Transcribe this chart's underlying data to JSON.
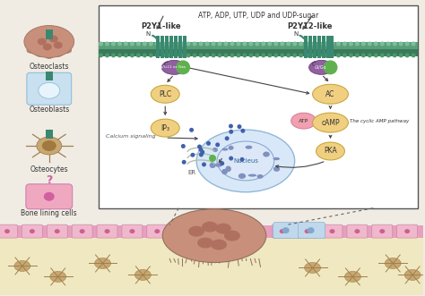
{
  "bg_color": "#f0ece4",
  "box_bg": "#ffffff",
  "title_text": "ATP, ADP, UTP, UDP and UDP-sugar",
  "receptor1_label": "P2Y1-like",
  "receptor2_label": "P2Y12-like",
  "g_protein1_label": "Gq/G11 or Gas",
  "g_protein2_label": "Gi/Go",
  "node_plc": "PLC",
  "node_ip3": "IP₃",
  "node_ac": "AC",
  "node_atp": "ATP",
  "node_camp": "cAMP",
  "node_pka": "PKA",
  "node_er": "ER",
  "node_nucleus": "Nucleus",
  "label_calcium": "Calcium signaling",
  "label_cyclic": "The cyclic AMP pathway",
  "left_labels": [
    "Osteoclasts",
    "Osteoblasts",
    "Osteocytes",
    "Bone lining cells"
  ],
  "node_fill": "#f0d080",
  "node_stroke": "#c8a840",
  "box_border": "#555555",
  "sand_color": "#f0e8c0",
  "mem_color1": "#5a9e7a",
  "mem_color2": "#3a7a5a",
  "mem_dot_color": "#7abf9a",
  "receptor_color": "#3a8870",
  "gp_color": "#9060a0",
  "green_dot": "#60b050",
  "atp_fill": "#f0a0b0",
  "atp_stroke": "#d07090",
  "arrow_color": "#444444",
  "nuc_outer": "#b0c8e8",
  "nuc_inner": "#dce8f8",
  "nuc_spot": "#8090c0",
  "osteoclast_body": "#c8907a",
  "osteoclast_spot": "#b07060",
  "osteoblast_fill": "#c8e0f0",
  "osteocyte_fill": "#c8a870",
  "bonelining_fill": "#f0a8c0",
  "pink_bar": "#e8a0c0",
  "pink_cell_fill": "#f0b8cc",
  "blue_cell_fill": "#c0d8ec"
}
